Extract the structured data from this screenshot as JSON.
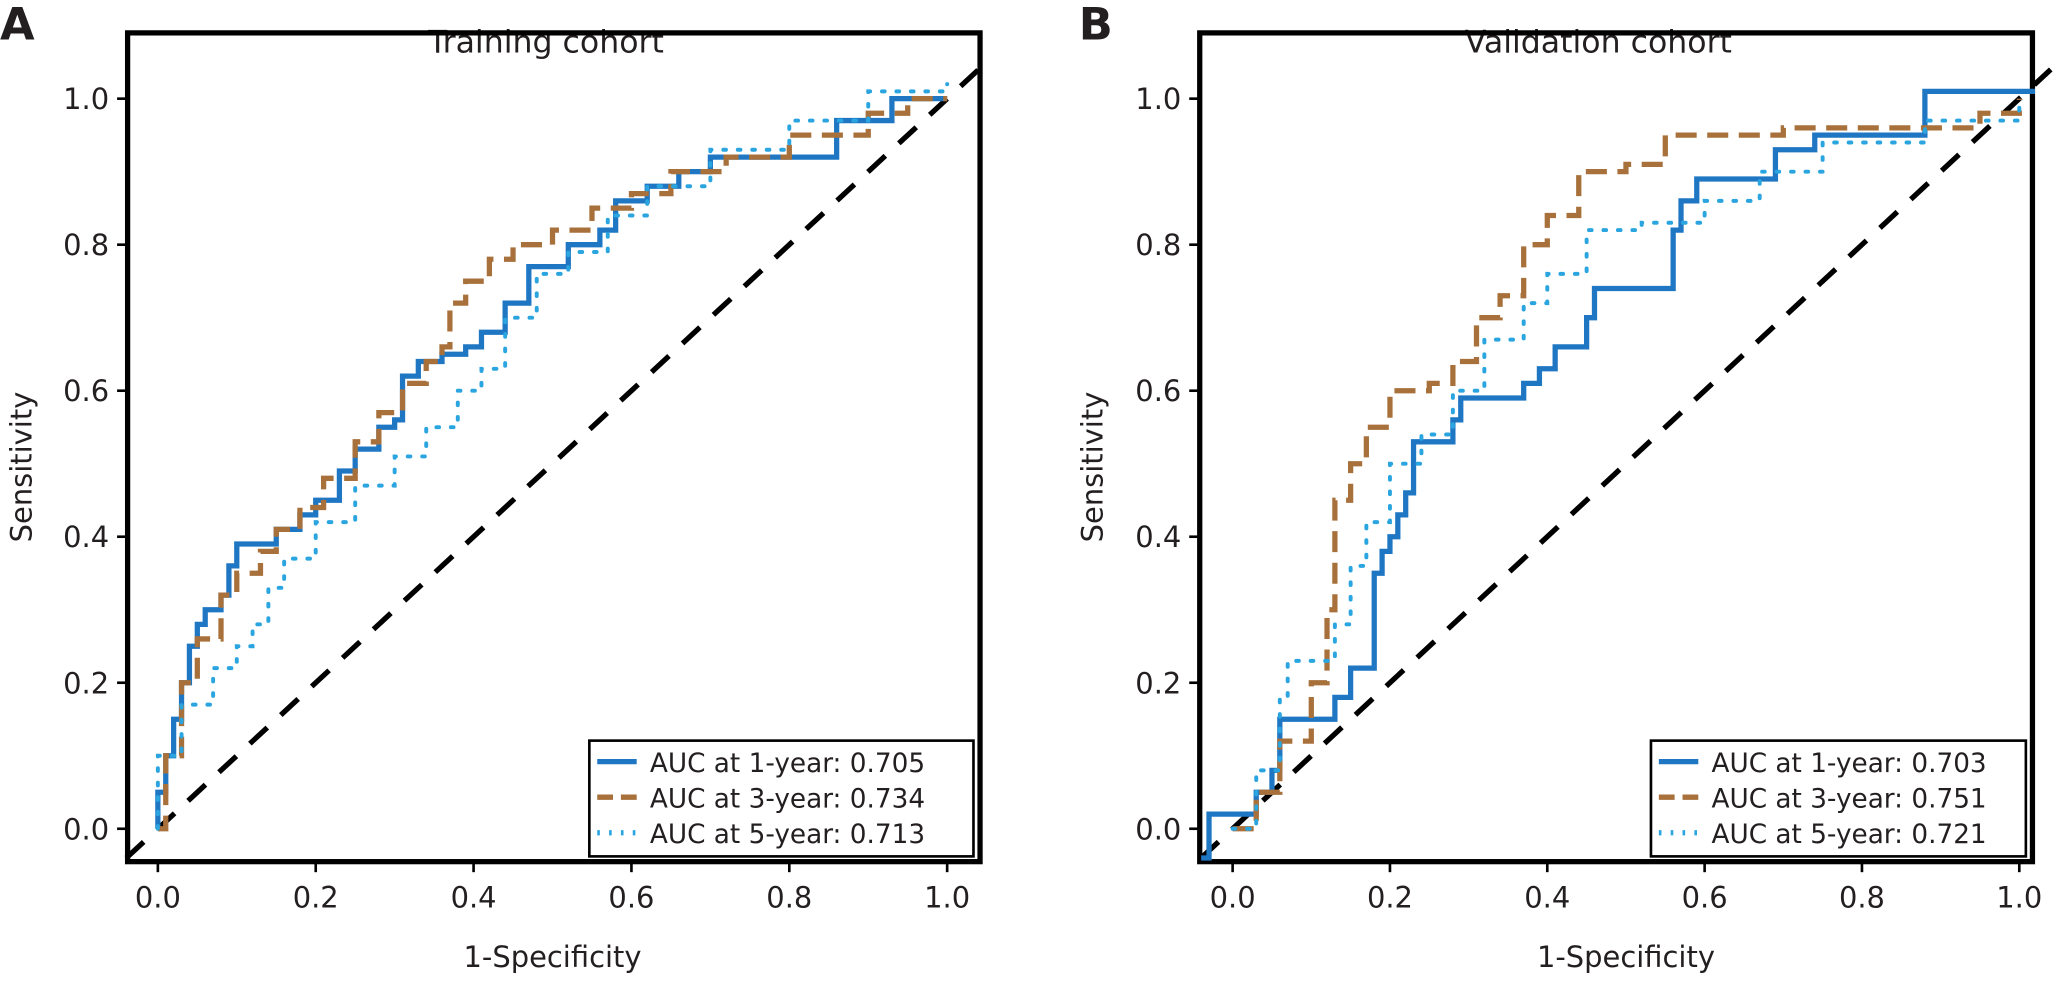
{
  "colors": {
    "y1": "#1f77c4",
    "y3": "#a8713c",
    "y5": "#2aa5e0",
    "ref": "#000000"
  },
  "chart_data": [
    {
      "panel_label": "A",
      "type": "line",
      "title": "Training cohort",
      "xlabel": "1-Specificity",
      "ylabel": "Sensitivity",
      "xlim": [
        -0.04,
        1.04
      ],
      "ylim": [
        -0.04,
        1.05
      ],
      "xticks": [
        "0.0",
        "0.2",
        "0.4",
        "0.6",
        "0.8",
        "1.0"
      ],
      "yticks": [
        "0.0",
        "0.2",
        "0.4",
        "0.6",
        "0.8",
        "1.0"
      ],
      "legend_position": "bottom-right",
      "series": [
        {
          "name": "AUC at 1-year: 0.705",
          "key": "y1",
          "style": "solid",
          "x": [
            0,
            0,
            0.01,
            0.02,
            0.03,
            0.04,
            0.05,
            0.06,
            0.08,
            0.09,
            0.1,
            0.13,
            0.15,
            0.18,
            0.2,
            0.23,
            0.25,
            0.28,
            0.3,
            0.31,
            0.33,
            0.36,
            0.39,
            0.41,
            0.44,
            0.47,
            0.5,
            0.52,
            0.56,
            0.58,
            0.62,
            0.66,
            0.7,
            0.78,
            0.86,
            0.9,
            0.93,
            1
          ],
          "y": [
            0,
            0.05,
            0.1,
            0.15,
            0.2,
            0.25,
            0.28,
            0.3,
            0.32,
            0.36,
            0.39,
            0.39,
            0.41,
            0.43,
            0.45,
            0.49,
            0.52,
            0.55,
            0.56,
            0.62,
            0.64,
            0.65,
            0.66,
            0.68,
            0.72,
            0.77,
            0.77,
            0.8,
            0.82,
            0.86,
            0.88,
            0.9,
            0.92,
            0.92,
            0.97,
            0.97,
            1,
            1
          ]
        },
        {
          "name": "AUC at 3-year: 0.734",
          "key": "y3",
          "style": "dashed",
          "x": [
            0,
            0.01,
            0.03,
            0.05,
            0.08,
            0.1,
            0.13,
            0.15,
            0.18,
            0.21,
            0.25,
            0.28,
            0.31,
            0.34,
            0.36,
            0.37,
            0.39,
            0.42,
            0.45,
            0.5,
            0.55,
            0.6,
            0.65,
            0.72,
            0.8,
            0.9,
            0.95,
            1
          ],
          "y": [
            0,
            0.1,
            0.2,
            0.26,
            0.32,
            0.35,
            0.38,
            0.41,
            0.44,
            0.48,
            0.53,
            0.57,
            0.61,
            0.64,
            0.66,
            0.72,
            0.75,
            0.78,
            0.8,
            0.82,
            0.85,
            0.87,
            0.9,
            0.92,
            0.95,
            0.98,
            1,
            1
          ]
        },
        {
          "name": "AUC at 5-year: 0.713",
          "key": "y5",
          "style": "dotted",
          "x": [
            0,
            0,
            0.03,
            0.07,
            0.1,
            0.12,
            0.14,
            0.16,
            0.2,
            0.25,
            0.3,
            0.34,
            0.38,
            0.41,
            0.44,
            0.48,
            0.52,
            0.57,
            0.62,
            0.7,
            0.8,
            0.9,
            1
          ],
          "y": [
            0,
            0.1,
            0.17,
            0.22,
            0.25,
            0.28,
            0.33,
            0.37,
            0.42,
            0.47,
            0.51,
            0.55,
            0.6,
            0.63,
            0.7,
            0.76,
            0.79,
            0.84,
            0.88,
            0.93,
            0.97,
            1.01,
            1.02
          ]
        }
      ]
    },
    {
      "panel_label": "B",
      "type": "line",
      "title": "Validation cohort",
      "xlabel": "1-Specificity",
      "ylabel": "Sensitivity",
      "xlim": [
        -0.04,
        1.04
      ],
      "ylim": [
        -0.04,
        1.05
      ],
      "xticks": [
        "0.0",
        "0.2",
        "0.4",
        "0.6",
        "0.8",
        "1.0"
      ],
      "yticks": [
        "0.0",
        "0.2",
        "0.4",
        "0.6",
        "0.8",
        "1.0"
      ],
      "legend_position": "bottom-right",
      "series": [
        {
          "name": "AUC at 1-year: 0.703",
          "key": "y1",
          "style": "solid",
          "x": [
            -0.04,
            -0.03,
            0,
            0.03,
            0.05,
            0.06,
            0.12,
            0.13,
            0.15,
            0.18,
            0.18,
            0.19,
            0.2,
            0.21,
            0.22,
            0.23,
            0.27,
            0.28,
            0.29,
            0.36,
            0.37,
            0.39,
            0.41,
            0.44,
            0.45,
            0.46,
            0.54,
            0.56,
            0.57,
            0.59,
            0.67,
            0.69,
            0.74,
            0.84,
            0.88,
            1.02
          ],
          "y": [
            -0.04,
            0.02,
            0.02,
            0.05,
            0.08,
            0.15,
            0.15,
            0.18,
            0.22,
            0.22,
            0.35,
            0.38,
            0.4,
            0.43,
            0.46,
            0.53,
            0.53,
            0.56,
            0.59,
            0.59,
            0.61,
            0.63,
            0.66,
            0.66,
            0.7,
            0.74,
            0.74,
            0.82,
            0.86,
            0.89,
            0.89,
            0.93,
            0.95,
            0.95,
            1.01,
            1.01
          ]
        },
        {
          "name": "AUC at 3-year: 0.751",
          "key": "y3",
          "style": "dashed",
          "x": [
            0,
            0.03,
            0.06,
            0.1,
            0.12,
            0.13,
            0.15,
            0.17,
            0.2,
            0.25,
            0.28,
            0.31,
            0.34,
            0.37,
            0.4,
            0.44,
            0.5,
            0.55,
            0.7,
            0.85,
            0.95,
            1
          ],
          "y": [
            0,
            0.05,
            0.12,
            0.2,
            0.3,
            0.45,
            0.5,
            0.55,
            0.6,
            0.61,
            0.64,
            0.7,
            0.73,
            0.8,
            0.84,
            0.9,
            0.91,
            0.95,
            0.96,
            0.96,
            0.98,
            1
          ]
        },
        {
          "name": "AUC at 5-year: 0.721",
          "key": "y5",
          "style": "dotted",
          "x": [
            0,
            0.03,
            0.06,
            0.07,
            0.13,
            0.15,
            0.17,
            0.2,
            0.24,
            0.28,
            0.32,
            0.37,
            0.4,
            0.45,
            0.52,
            0.6,
            0.67,
            0.75,
            0.88,
            1
          ],
          "y": [
            0,
            0.08,
            0.18,
            0.23,
            0.28,
            0.36,
            0.42,
            0.5,
            0.54,
            0.6,
            0.67,
            0.72,
            0.76,
            0.82,
            0.83,
            0.86,
            0.9,
            0.94,
            0.97,
            0.99
          ]
        }
      ]
    }
  ]
}
